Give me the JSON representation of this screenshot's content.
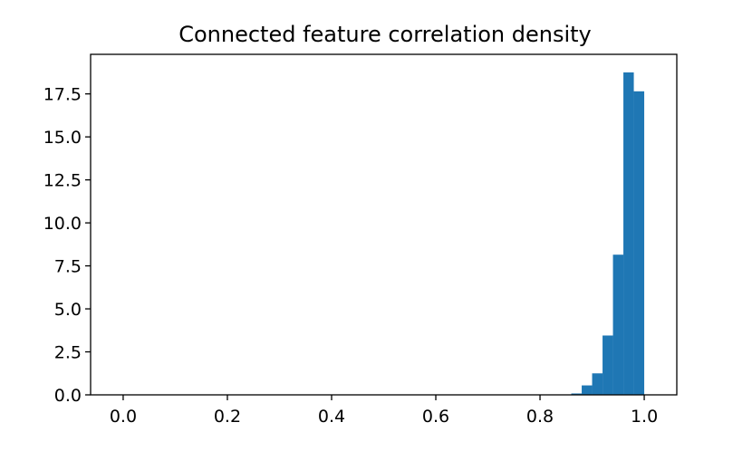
{
  "chart_data": {
    "type": "bar",
    "title": "Connected feature correlation density",
    "xlabel": "",
    "ylabel": "",
    "xlim": [
      -0.0625,
      1.0625
    ],
    "ylim": [
      0,
      19.8
    ],
    "xticks": [
      0.0,
      0.2,
      0.4,
      0.6,
      0.8,
      1.0
    ],
    "xtick_labels": [
      "0.0",
      "0.2",
      "0.4",
      "0.6",
      "0.8",
      "1.0"
    ],
    "yticks": [
      0.0,
      2.5,
      5.0,
      7.5,
      10.0,
      12.5,
      15.0,
      17.5
    ],
    "ytick_labels": [
      "0.0",
      "2.5",
      "5.0",
      "7.5",
      "10.0",
      "12.5",
      "15.0",
      "17.5"
    ],
    "bins": [
      {
        "x0": 0.84,
        "x1": 0.86,
        "value": 0.02
      },
      {
        "x0": 0.86,
        "x1": 0.88,
        "value": 0.08
      },
      {
        "x0": 0.88,
        "x1": 0.9,
        "value": 0.55
      },
      {
        "x0": 0.9,
        "x1": 0.92,
        "value": 1.25
      },
      {
        "x0": 0.92,
        "x1": 0.94,
        "value": 3.45
      },
      {
        "x0": 0.94,
        "x1": 0.96,
        "value": 8.15
      },
      {
        "x0": 0.96,
        "x1": 0.98,
        "value": 18.75
      },
      {
        "x0": 0.98,
        "x1": 1.0,
        "value": 17.65
      }
    ],
    "bar_color": "#1f77b4",
    "grid": false,
    "legend": "none"
  }
}
